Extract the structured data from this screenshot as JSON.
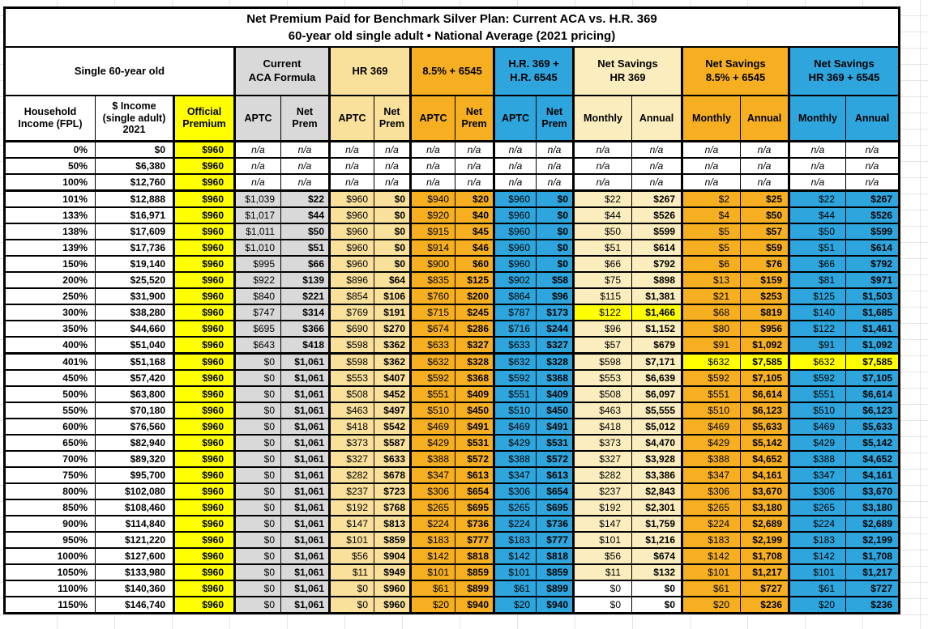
{
  "colors": {
    "yellow": "#FFFF00",
    "gray": "#D9D9D9",
    "tan": "#F9E09B",
    "cream": "#FBEDBD",
    "orange": "#F6AF21",
    "blue": "#2FA5DE",
    "white": "#FFFFFF",
    "highlight": "#FFFF00",
    "border": "#000000"
  },
  "chart_data": {
    "type": "table",
    "title": "Net Premium Paid for Benchmark Silver Plan: Current ACA vs. H.R. 369",
    "subtitle": "60-year old single adult • National Average (2021 pricing)",
    "group_headers": [
      {
        "label": "Single 60-year old",
        "span": 3,
        "bg": "white"
      },
      {
        "label": "Current\nACA Formula",
        "span": 2,
        "bg": "gray"
      },
      {
        "label": "HR 369",
        "span": 2,
        "bg": "tan"
      },
      {
        "label": "8.5% + 6545",
        "span": 2,
        "bg": "orange"
      },
      {
        "label": "H.R. 369 +\nH.R. 6545",
        "span": 2,
        "bg": "blue"
      },
      {
        "label": "Net Savings\nHR 369",
        "span": 2,
        "bg": "cream"
      },
      {
        "label": "Net Savings\n8.5% + 6545",
        "span": 2,
        "bg": "orange"
      },
      {
        "label": "Net Savings\nHR 369 + 6545",
        "span": 2,
        "bg": "blue"
      }
    ],
    "column_headers": [
      "Household\nIncome (FPL)",
      "$ Income\n(single adult)\n2021",
      "Official\nPremium",
      "APTC",
      "Net\nPrem",
      "APTC",
      "Net\nPrem",
      "APTC",
      "Net\nPrem",
      "APTC",
      "Net\nPrem",
      "Monthly",
      "Annual",
      "Monthly",
      "Annual",
      "Monthly",
      "Annual"
    ],
    "rows": [
      [
        "0%",
        "$0",
        "$960",
        "n/a",
        "n/a",
        "n/a",
        "n/a",
        "n/a",
        "n/a",
        "n/a",
        "n/a",
        "n/a",
        "n/a",
        "n/a",
        "n/a",
        "n/a",
        "n/a"
      ],
      [
        "50%",
        "$6,380",
        "$960",
        "n/a",
        "n/a",
        "n/a",
        "n/a",
        "n/a",
        "n/a",
        "n/a",
        "n/a",
        "n/a",
        "n/a",
        "n/a",
        "n/a",
        "n/a",
        "n/a"
      ],
      [
        "100%",
        "$12,760",
        "$960",
        "n/a",
        "n/a",
        "n/a",
        "n/a",
        "n/a",
        "n/a",
        "n/a",
        "n/a",
        "n/a",
        "n/a",
        "n/a",
        "n/a",
        "n/a",
        "n/a"
      ],
      [
        "101%",
        "$12,888",
        "$960",
        "$1,039",
        "$22",
        "$960",
        "$0",
        "$940",
        "$20",
        "$960",
        "$0",
        "$22",
        "$267",
        "$2",
        "$25",
        "$22",
        "$267"
      ],
      [
        "133%",
        "$16,971",
        "$960",
        "$1,017",
        "$44",
        "$960",
        "$0",
        "$920",
        "$40",
        "$960",
        "$0",
        "$44",
        "$526",
        "$4",
        "$50",
        "$44",
        "$526"
      ],
      [
        "138%",
        "$17,609",
        "$960",
        "$1,011",
        "$50",
        "$960",
        "$0",
        "$915",
        "$45",
        "$960",
        "$0",
        "$50",
        "$599",
        "$5",
        "$57",
        "$50",
        "$599"
      ],
      [
        "139%",
        "$17,736",
        "$960",
        "$1,010",
        "$51",
        "$960",
        "$0",
        "$914",
        "$46",
        "$960",
        "$0",
        "$51",
        "$614",
        "$5",
        "$59",
        "$51",
        "$614"
      ],
      [
        "150%",
        "$19,140",
        "$960",
        "$995",
        "$66",
        "$960",
        "$0",
        "$900",
        "$60",
        "$960",
        "$0",
        "$66",
        "$792",
        "$6",
        "$76",
        "$66",
        "$792"
      ],
      [
        "200%",
        "$25,520",
        "$960",
        "$922",
        "$139",
        "$896",
        "$64",
        "$835",
        "$125",
        "$902",
        "$58",
        "$75",
        "$898",
        "$13",
        "$159",
        "$81",
        "$971"
      ],
      [
        "250%",
        "$31,900",
        "$960",
        "$840",
        "$221",
        "$854",
        "$106",
        "$760",
        "$200",
        "$864",
        "$96",
        "$115",
        "$1,381",
        "$21",
        "$253",
        "$125",
        "$1,503"
      ],
      [
        "300%",
        "$38,280",
        "$960",
        "$747",
        "$314",
        "$769",
        "$191",
        "$715",
        "$245",
        "$787",
        "$173",
        "$122",
        "$1,466",
        "$68",
        "$819",
        "$140",
        "$1,685"
      ],
      [
        "350%",
        "$44,660",
        "$960",
        "$695",
        "$366",
        "$690",
        "$270",
        "$674",
        "$286",
        "$716",
        "$244",
        "$96",
        "$1,152",
        "$80",
        "$956",
        "$122",
        "$1,461"
      ],
      [
        "400%",
        "$51,040",
        "$960",
        "$643",
        "$418",
        "$598",
        "$362",
        "$633",
        "$327",
        "$633",
        "$327",
        "$57",
        "$679",
        "$91",
        "$1,092",
        "$91",
        "$1,092"
      ],
      [
        "401%",
        "$51,168",
        "$960",
        "$0",
        "$1,061",
        "$598",
        "$362",
        "$632",
        "$328",
        "$632",
        "$328",
        "$598",
        "$7,171",
        "$632",
        "$7,585",
        "$632",
        "$7,585"
      ],
      [
        "450%",
        "$57,420",
        "$960",
        "$0",
        "$1,061",
        "$553",
        "$407",
        "$592",
        "$368",
        "$592",
        "$368",
        "$553",
        "$6,639",
        "$592",
        "$7,105",
        "$592",
        "$7,105"
      ],
      [
        "500%",
        "$63,800",
        "$960",
        "$0",
        "$1,061",
        "$508",
        "$452",
        "$551",
        "$409",
        "$551",
        "$409",
        "$508",
        "$6,097",
        "$551",
        "$6,614",
        "$551",
        "$6,614"
      ],
      [
        "550%",
        "$70,180",
        "$960",
        "$0",
        "$1,061",
        "$463",
        "$497",
        "$510",
        "$450",
        "$510",
        "$450",
        "$463",
        "$5,555",
        "$510",
        "$6,123",
        "$510",
        "$6,123"
      ],
      [
        "600%",
        "$76,560",
        "$960",
        "$0",
        "$1,061",
        "$418",
        "$542",
        "$469",
        "$491",
        "$469",
        "$491",
        "$418",
        "$5,012",
        "$469",
        "$5,633",
        "$469",
        "$5,633"
      ],
      [
        "650%",
        "$82,940",
        "$960",
        "$0",
        "$1,061",
        "$373",
        "$587",
        "$429",
        "$531",
        "$429",
        "$531",
        "$373",
        "$4,470",
        "$429",
        "$5,142",
        "$429",
        "$5,142"
      ],
      [
        "700%",
        "$89,320",
        "$960",
        "$0",
        "$1,061",
        "$327",
        "$633",
        "$388",
        "$572",
        "$388",
        "$572",
        "$327",
        "$3,928",
        "$388",
        "$4,652",
        "$388",
        "$4,652"
      ],
      [
        "750%",
        "$95,700",
        "$960",
        "$0",
        "$1,061",
        "$282",
        "$678",
        "$347",
        "$613",
        "$347",
        "$613",
        "$282",
        "$3,386",
        "$347",
        "$4,161",
        "$347",
        "$4,161"
      ],
      [
        "800%",
        "$102,080",
        "$960",
        "$0",
        "$1,061",
        "$237",
        "$723",
        "$306",
        "$654",
        "$306",
        "$654",
        "$237",
        "$2,843",
        "$306",
        "$3,670",
        "$306",
        "$3,670"
      ],
      [
        "850%",
        "$108,460",
        "$960",
        "$0",
        "$1,061",
        "$192",
        "$768",
        "$265",
        "$695",
        "$265",
        "$695",
        "$192",
        "$2,301",
        "$265",
        "$3,180",
        "$265",
        "$3,180"
      ],
      [
        "900%",
        "$114,840",
        "$960",
        "$0",
        "$1,061",
        "$147",
        "$813",
        "$224",
        "$736",
        "$224",
        "$736",
        "$147",
        "$1,759",
        "$224",
        "$2,689",
        "$224",
        "$2,689"
      ],
      [
        "950%",
        "$121,220",
        "$960",
        "$0",
        "$1,061",
        "$101",
        "$859",
        "$183",
        "$777",
        "$183",
        "$777",
        "$101",
        "$1,216",
        "$183",
        "$2,199",
        "$183",
        "$2,199"
      ],
      [
        "1000%",
        "$127,600",
        "$960",
        "$0",
        "$1,061",
        "$56",
        "$904",
        "$142",
        "$818",
        "$142",
        "$818",
        "$56",
        "$674",
        "$142",
        "$1,708",
        "$142",
        "$1,708"
      ],
      [
        "1050%",
        "$133,980",
        "$960",
        "$0",
        "$1,061",
        "$11",
        "$949",
        "$101",
        "$859",
        "$101",
        "$859",
        "$11",
        "$132",
        "$101",
        "$1,217",
        "$101",
        "$1,217"
      ],
      [
        "1100%",
        "$140,360",
        "$960",
        "$0",
        "$1,061",
        "$0",
        "$960",
        "$61",
        "$899",
        "$61",
        "$899",
        "$0",
        "$0",
        "$61",
        "$727",
        "$61",
        "$727"
      ],
      [
        "1150%",
        "$146,740",
        "$960",
        "$0",
        "$1,061",
        "$0",
        "$960",
        "$20",
        "$940",
        "$20",
        "$940",
        "$0",
        "$0",
        "$20",
        "$236",
        "$20",
        "$236"
      ]
    ],
    "cell_overrides": [
      {
        "row": "300%",
        "cols": [
          11,
          12
        ],
        "bg": "highlight"
      },
      {
        "row": "401%",
        "cols": [
          13,
          14,
          15,
          16
        ],
        "bg": "highlight"
      },
      {
        "row": "1100%",
        "cols": [
          11,
          12
        ],
        "bg": "white"
      },
      {
        "row": "1150%",
        "cols": [
          11,
          12
        ],
        "bg": "white"
      }
    ],
    "thick_separator_after_rows": [
      "100%",
      "400%"
    ]
  }
}
